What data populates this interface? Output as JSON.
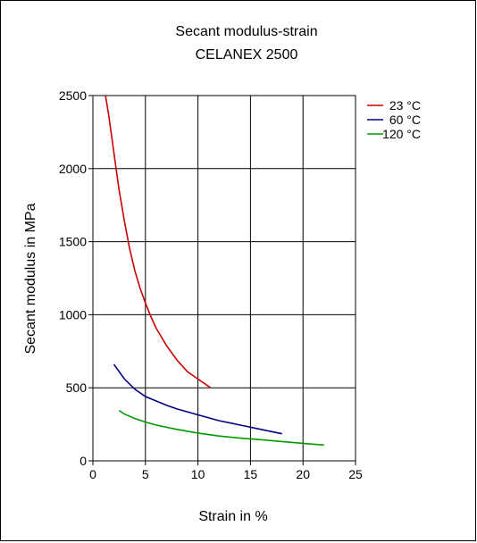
{
  "chart_data": {
    "type": "line",
    "title": [
      "Secant modulus-strain",
      "CELANEX 2500"
    ],
    "xlabel": "Strain in %",
    "ylabel": "Secant modulus in MPa",
    "xlim": [
      0,
      25
    ],
    "ylim": [
      0,
      2500
    ],
    "xticks": [
      0,
      5,
      10,
      15,
      20,
      25
    ],
    "yticks": [
      0,
      500,
      1000,
      1500,
      2000,
      2500
    ],
    "grid": true,
    "legend_position": "top-right",
    "series": [
      {
        "name": "23 °C",
        "color": "#cc0000",
        "x": [
          1.2,
          1.5,
          2.0,
          2.5,
          3.0,
          3.5,
          4.0,
          4.5,
          5.0,
          5.5,
          6.0,
          7.0,
          8.0,
          9.0,
          10.0,
          11.2
        ],
        "y": [
          2500,
          2370,
          2110,
          1850,
          1640,
          1450,
          1300,
          1180,
          1080,
          990,
          910,
          790,
          690,
          610,
          560,
          500
        ]
      },
      {
        "name": "60 °C",
        "color": "#000080",
        "x": [
          2.0,
          3.0,
          4.0,
          5.0,
          6.0,
          7.0,
          8.0,
          10.0,
          12.0,
          14.0,
          16.0,
          18.0
        ],
        "y": [
          660,
          560,
          490,
          440,
          410,
          380,
          355,
          315,
          275,
          245,
          215,
          185
        ]
      },
      {
        "name": "120 °C",
        "color": "#009900",
        "x": [
          2.5,
          3.0,
          4.0,
          5.0,
          6.0,
          8.0,
          10.0,
          12.0,
          14.0,
          16.0,
          18.0,
          20.0,
          22.0
        ],
        "y": [
          345,
          320,
          290,
          265,
          245,
          215,
          190,
          170,
          155,
          145,
          132,
          120,
          108
        ]
      }
    ]
  }
}
